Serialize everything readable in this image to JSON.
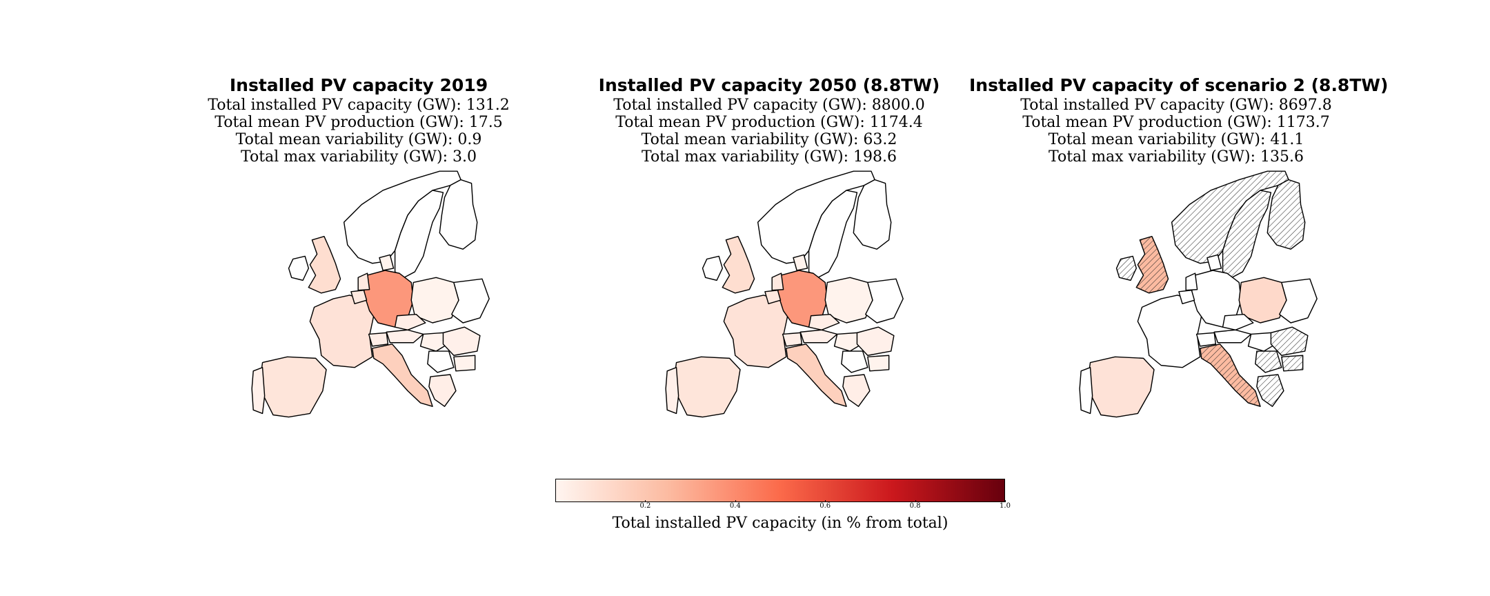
{
  "panels": [
    {
      "title": "Installed PV capacity 2019",
      "stats": [
        "Total installed PV capacity (GW): 131.2",
        "Total mean PV production (GW): 17.5",
        "Total mean variability (GW): 0.9",
        "Total max variability (GW): 3.0"
      ],
      "country_shares": {
        "DE": 0.36,
        "IT": 0.16,
        "UK": 0.1,
        "FR": 0.08,
        "ES": 0.07,
        "BE": 0.05,
        "NL": 0.05,
        "CH": 0.03,
        "CZ": 0.03,
        "GR": 0.03,
        "AT": 0.02,
        "RO": 0.02,
        "PT": 0.02,
        "DK": 0.01,
        "BG": 0.01,
        "PL": 0.01,
        "HU": 0.01
      }
    },
    {
      "title": "Installed PV capacity 2050 (8.8TW)",
      "stats": [
        "Total installed PV capacity (GW): 8800.0",
        "Total mean PV production (GW): 1174.4",
        "Total mean variability (GW): 63.2",
        "Total max variability (GW): 198.6"
      ],
      "country_shares": {
        "DE": 0.36,
        "IT": 0.16,
        "UK": 0.1,
        "FR": 0.08,
        "ES": 0.07,
        "BE": 0.05,
        "NL": 0.05,
        "CH": 0.03,
        "CZ": 0.03,
        "GR": 0.03,
        "AT": 0.02,
        "RO": 0.02,
        "PT": 0.02,
        "DK": 0.01,
        "BG": 0.01,
        "PL": 0.01,
        "HU": 0.01
      }
    },
    {
      "title": "Installed PV capacity of scenario 2 (8.8TW)",
      "stats": [
        "Total installed PV capacity (GW): 8697.8",
        "Total mean PV production (GW): 1173.7",
        "Total mean variability (GW): 41.1",
        "Total max variability (GW): 135.6"
      ],
      "country_shares": {
        "UK": 0.25,
        "IT": 0.25,
        "PL": 0.12,
        "ES": 0.08
      },
      "hatched": [
        "NO",
        "SE",
        "FI",
        "UK",
        "IE",
        "IT",
        "RO",
        "BG",
        "GR",
        "RS"
      ]
    }
  ],
  "colorbar": {
    "label": "Total installed PV capacity (in % from total)",
    "min": 0.0,
    "max": 1.0,
    "ticks": [
      "0.2",
      "0.4",
      "0.6",
      "0.8",
      "1.0"
    ],
    "colors": [
      "#fff5f0",
      "#fcbba1",
      "#fb6a4a",
      "#cb181d",
      "#67000d"
    ]
  }
}
